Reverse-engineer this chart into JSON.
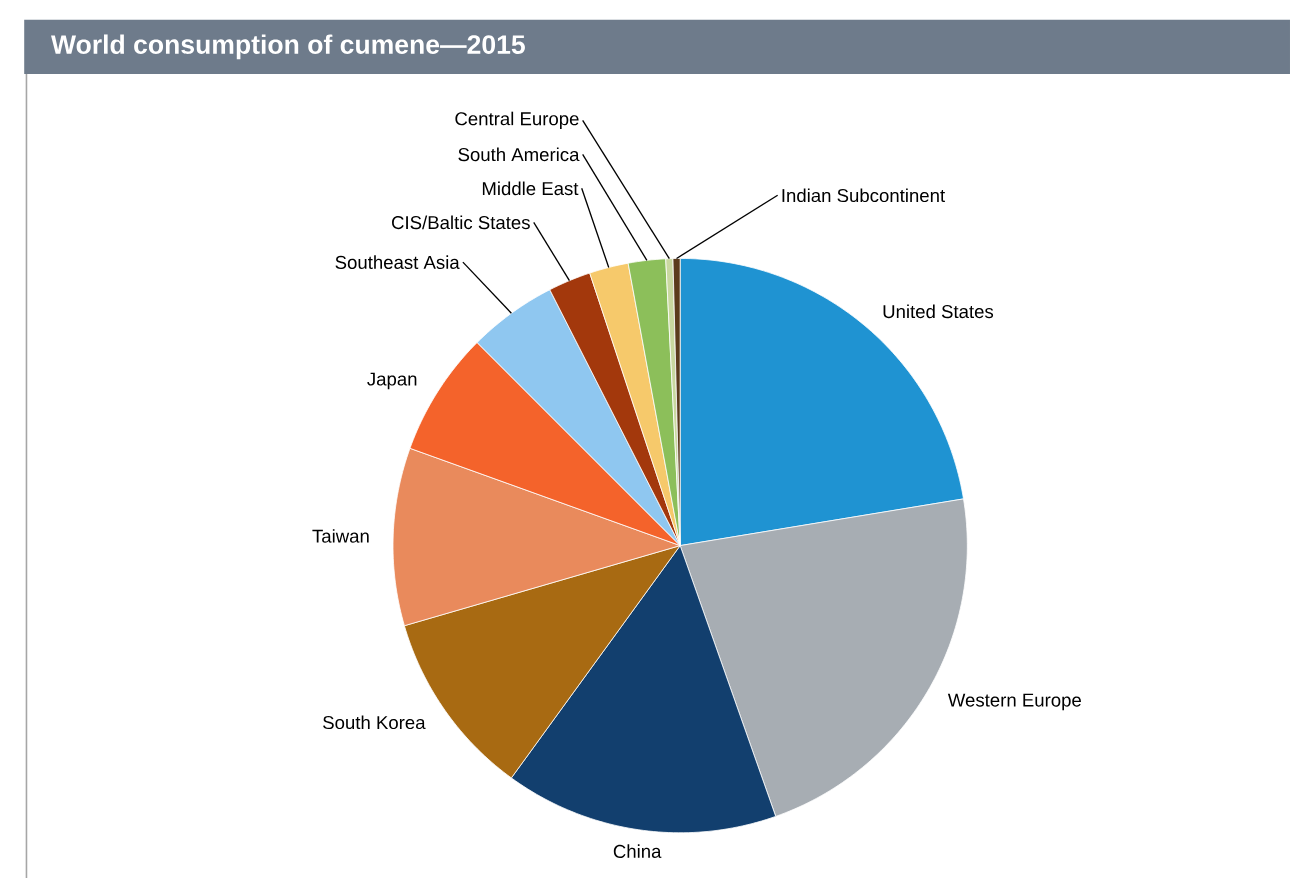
{
  "chart_data": {
    "type": "pie",
    "title": "World consumption of cumene—2015",
    "categories": [
      "United States",
      "Western Europe",
      "China",
      "South Korea",
      "Taiwan",
      "Japan",
      "Southeast Asia",
      "CIS/Baltic States",
      "Middle East",
      "South America",
      "Central Europe",
      "Indian Subcontinent"
    ],
    "values": [
      22.4,
      22.2,
      15.4,
      10.5,
      10,
      7,
      5,
      2.4,
      2.2,
      2.1,
      0.4,
      0.4
    ],
    "colors": [
      "#1f93d2",
      "#a7adb3",
      "#123f6e",
      "#a86a12",
      "#e98a5c",
      "#f4632b",
      "#8fc7f0",
      "#a3380c",
      "#f6c96b",
      "#8cbf5a",
      "#c9d8a0",
      "#5b3b1c"
    ]
  }
}
